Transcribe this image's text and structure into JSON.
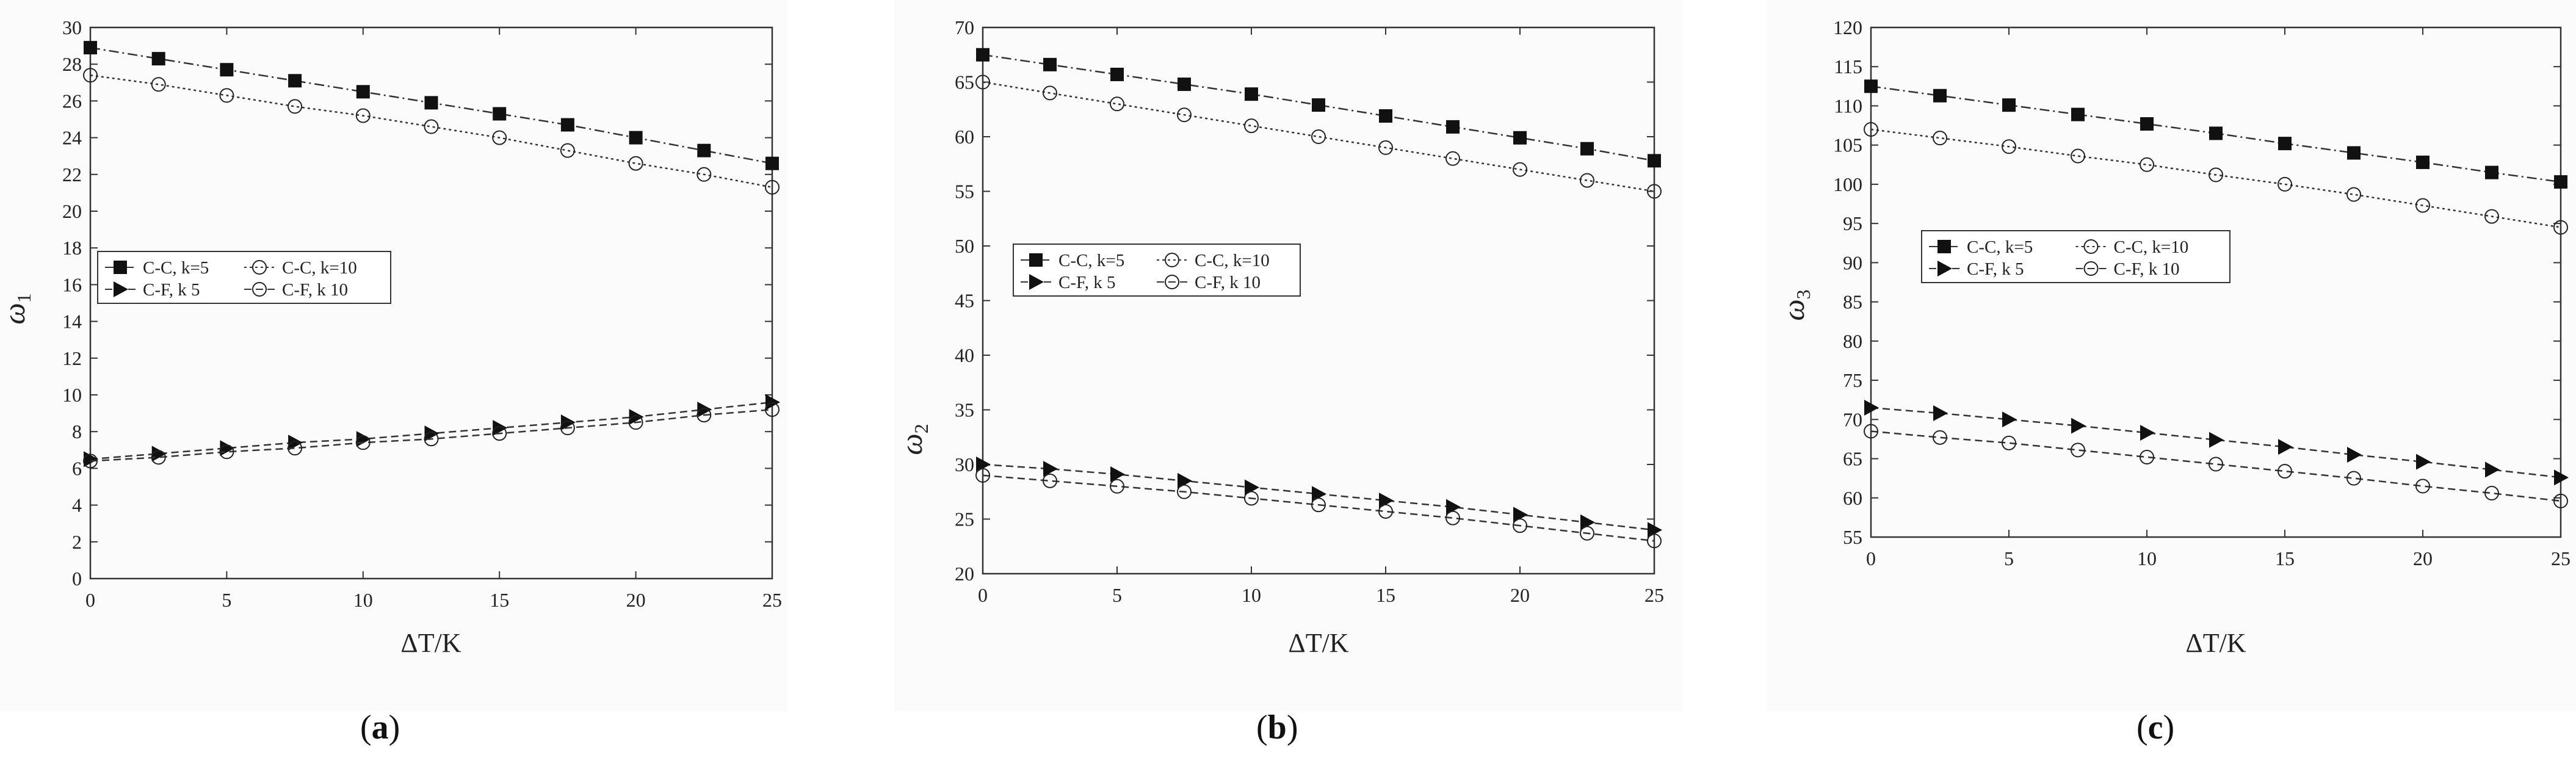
{
  "chart_data": [
    {
      "panel": "a",
      "caption": "a",
      "type": "line",
      "xlabel": "ΔT/K",
      "ylabel": "ω",
      "ylabel_sub": "1",
      "xlim": [
        0,
        25
      ],
      "ylim": [
        0,
        30
      ],
      "xticks": [
        0,
        5,
        10,
        15,
        20,
        25
      ],
      "yticks": [
        0,
        2,
        4,
        6,
        8,
        10,
        12,
        14,
        16,
        18,
        20,
        22,
        24,
        26,
        28,
        30
      ],
      "grid": false,
      "legend_position": "center-left",
      "legend_rows": [
        [
          "C-C, k=5",
          "C-C, k=10"
        ],
        [
          "C-F, k 5",
          "C-F, k 10"
        ]
      ],
      "x": [
        0,
        2.5,
        5,
        7.5,
        10,
        12.5,
        15,
        17.5,
        20,
        22.5,
        25
      ],
      "series": [
        {
          "marker": "square",
          "line": "dashdot",
          "values": [
            28.9,
            28.3,
            27.7,
            27.1,
            26.5,
            25.9,
            25.3,
            24.7,
            24.0,
            23.3,
            22.6
          ]
        },
        {
          "marker": "circle-open",
          "line": "dotted",
          "values": [
            27.4,
            26.9,
            26.3,
            25.7,
            25.2,
            24.6,
            24.0,
            23.3,
            22.6,
            22.0,
            21.3
          ]
        },
        {
          "marker": "triangle-right",
          "line": "dashed",
          "values": [
            6.5,
            6.8,
            7.1,
            7.4,
            7.6,
            7.9,
            8.2,
            8.5,
            8.8,
            9.2,
            9.6
          ]
        },
        {
          "marker": "circle-open",
          "line": "dashed",
          "values": [
            6.4,
            6.6,
            6.9,
            7.1,
            7.4,
            7.6,
            7.9,
            8.2,
            8.5,
            8.9,
            9.2
          ]
        }
      ]
    },
    {
      "panel": "b",
      "caption": "b",
      "type": "line",
      "xlabel": "ΔT/K",
      "ylabel": "ω",
      "ylabel_sub": "2",
      "xlim": [
        0,
        25
      ],
      "ylim": [
        20,
        70
      ],
      "xticks": [
        0,
        5,
        10,
        15,
        20,
        25
      ],
      "yticks": [
        20,
        25,
        30,
        35,
        40,
        45,
        50,
        55,
        60,
        65,
        70
      ],
      "grid": false,
      "legend_position": "center-left",
      "legend_rows": [
        [
          "C-C, k=5",
          "C-C, k=10"
        ],
        [
          "C-F, k 5",
          "C-F, k 10"
        ]
      ],
      "x": [
        0,
        2.5,
        5,
        7.5,
        10,
        12.5,
        15,
        17.5,
        20,
        22.5,
        25
      ],
      "series": [
        {
          "marker": "square",
          "line": "dashdot",
          "values": [
            67.5,
            66.6,
            65.7,
            64.8,
            63.9,
            62.9,
            61.9,
            60.9,
            59.9,
            58.9,
            57.8
          ]
        },
        {
          "marker": "circle-open",
          "line": "dotted",
          "values": [
            65.0,
            64.0,
            63.0,
            62.0,
            61.0,
            60.0,
            59.0,
            58.0,
            57.0,
            56.0,
            55.0
          ]
        },
        {
          "marker": "triangle-right",
          "line": "dashed",
          "values": [
            30.0,
            29.6,
            29.1,
            28.5,
            27.9,
            27.3,
            26.7,
            26.1,
            25.4,
            24.7,
            24.0
          ]
        },
        {
          "marker": "circle-open",
          "line": "dashed",
          "values": [
            29.0,
            28.5,
            28.0,
            27.5,
            26.9,
            26.3,
            25.7,
            25.1,
            24.4,
            23.7,
            23.0
          ]
        }
      ]
    },
    {
      "panel": "c",
      "caption": "c",
      "type": "line",
      "xlabel": "ΔT/K",
      "ylabel": "ω",
      "ylabel_sub": "3",
      "xlim": [
        0,
        25
      ],
      "ylim": [
        55,
        120
      ],
      "xticks": [
        0,
        5,
        10,
        15,
        20,
        25
      ],
      "yticks": [
        55,
        60,
        65,
        70,
        75,
        80,
        85,
        90,
        95,
        100,
        105,
        110,
        115,
        120
      ],
      "grid": false,
      "legend_position": "upper-right",
      "legend_rows": [
        [
          "C-C, k=5",
          "C-C, k=10"
        ],
        [
          "C-F, k 5",
          "C-F, k 10"
        ]
      ],
      "x": [
        0,
        2.5,
        5,
        7.5,
        10,
        12.5,
        15,
        17.5,
        20,
        22.5,
        25
      ],
      "series": [
        {
          "marker": "square",
          "line": "dashdot",
          "values": [
            112.5,
            111.3,
            110.1,
            108.9,
            107.7,
            106.5,
            105.2,
            104.0,
            102.8,
            101.5,
            100.3
          ]
        },
        {
          "marker": "circle-open",
          "line": "dotted",
          "values": [
            107.0,
            105.9,
            104.8,
            103.6,
            102.5,
            101.2,
            100.0,
            98.7,
            97.3,
            95.9,
            94.5
          ]
        },
        {
          "marker": "triangle-right",
          "line": "dashed",
          "values": [
            71.5,
            70.8,
            70.0,
            69.2,
            68.3,
            67.4,
            66.5,
            65.5,
            64.6,
            63.6,
            62.6
          ]
        },
        {
          "marker": "circle-open",
          "line": "dashed",
          "values": [
            68.5,
            67.7,
            67.0,
            66.1,
            65.2,
            64.3,
            63.4,
            62.5,
            61.5,
            60.6,
            59.6
          ]
        }
      ]
    }
  ]
}
